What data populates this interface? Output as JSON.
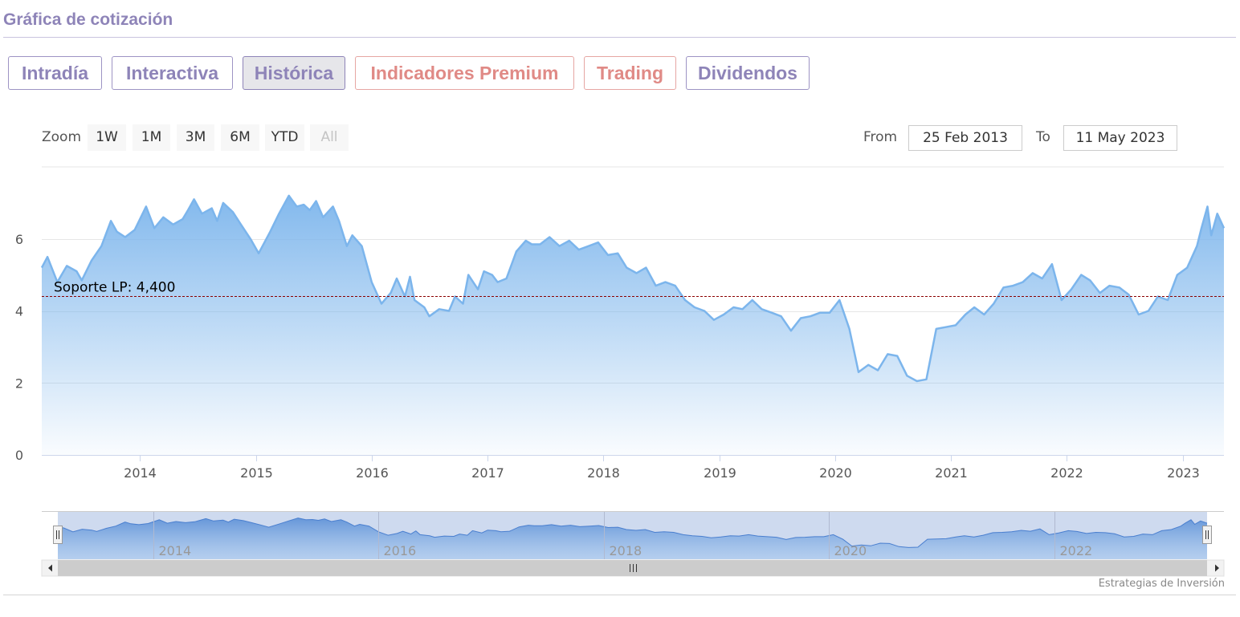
{
  "header": {
    "title": "Gráfica de cotización"
  },
  "tabs": [
    {
      "label": "Intradía",
      "state": "normal"
    },
    {
      "label": "Interactiva",
      "state": "normal"
    },
    {
      "label": "Histórica",
      "state": "active"
    },
    {
      "label": "Indicadores Premium",
      "state": "premium"
    },
    {
      "label": "Trading",
      "state": "premium"
    },
    {
      "label": "Dividendos",
      "state": "normal"
    }
  ],
  "zoom": {
    "label": "Zoom",
    "buttons": [
      "1W",
      "1M",
      "3M",
      "6M",
      "YTD",
      "All"
    ],
    "selected": "All"
  },
  "range": {
    "from_label": "From",
    "from_value": "25 Feb 2013",
    "to_label": "To",
    "to_value": "11 May 2023"
  },
  "credit": "Estrategias de Inversión",
  "colors": {
    "line": "#7cb5ec",
    "support_line": "#8b0000",
    "tab_text": "#8e84b8",
    "premium_text": "#e08a86"
  },
  "chart_data": {
    "type": "area",
    "x_type": "date",
    "xlim": [
      "2013-02-25",
      "2023-05-11"
    ],
    "ylim": [
      0,
      8
    ],
    "y_ticks": [
      0,
      2,
      4,
      6
    ],
    "x_ticks": [
      "2014",
      "2015",
      "2016",
      "2017",
      "2018",
      "2019",
      "2020",
      "2021",
      "2022",
      "2023"
    ],
    "navigator_ticks": [
      "2014",
      "2016",
      "2018",
      "2020",
      "2022"
    ],
    "grid": true,
    "legend": "none",
    "plot_band_line": {
      "label": "Soporte LP: 4,400",
      "value": 4.4
    },
    "series": [
      {
        "points": [
          [
            "2013-02-25",
            5.2
          ],
          [
            "2013-03-15",
            5.5
          ],
          [
            "2013-04-15",
            4.8
          ],
          [
            "2013-05-15",
            5.25
          ],
          [
            "2013-06-15",
            5.1
          ],
          [
            "2013-07-01",
            4.85
          ],
          [
            "2013-08-01",
            5.4
          ],
          [
            "2013-09-01",
            5.8
          ],
          [
            "2013-10-01",
            6.5
          ],
          [
            "2013-10-20",
            6.2
          ],
          [
            "2013-11-15",
            6.05
          ],
          [
            "2013-12-15",
            6.25
          ],
          [
            "2014-01-20",
            6.9
          ],
          [
            "2014-02-15",
            6.3
          ],
          [
            "2014-03-15",
            6.6
          ],
          [
            "2014-04-15",
            6.4
          ],
          [
            "2014-05-15",
            6.55
          ],
          [
            "2014-06-01",
            6.8
          ],
          [
            "2014-06-20",
            7.1
          ],
          [
            "2014-07-15",
            6.7
          ],
          [
            "2014-08-15",
            6.85
          ],
          [
            "2014-09-01",
            6.5
          ],
          [
            "2014-09-20",
            7.0
          ],
          [
            "2014-10-20",
            6.75
          ],
          [
            "2014-11-15",
            6.4
          ],
          [
            "2014-12-15",
            6.0
          ],
          [
            "2015-01-10",
            5.6
          ],
          [
            "2015-02-15",
            6.2
          ],
          [
            "2015-03-15",
            6.7
          ],
          [
            "2015-04-15",
            7.2
          ],
          [
            "2015-05-10",
            6.9
          ],
          [
            "2015-06-01",
            6.95
          ],
          [
            "2015-06-20",
            6.8
          ],
          [
            "2015-07-10",
            7.05
          ],
          [
            "2015-08-01",
            6.6
          ],
          [
            "2015-09-01",
            6.9
          ],
          [
            "2015-09-20",
            6.5
          ],
          [
            "2015-10-15",
            5.8
          ],
          [
            "2015-11-01",
            6.1
          ],
          [
            "2015-12-01",
            5.8
          ],
          [
            "2016-01-01",
            4.8
          ],
          [
            "2016-02-01",
            4.2
          ],
          [
            "2016-03-01",
            4.5
          ],
          [
            "2016-03-20",
            4.9
          ],
          [
            "2016-04-15",
            4.4
          ],
          [
            "2016-05-01",
            4.95
          ],
          [
            "2016-05-15",
            4.3
          ],
          [
            "2016-06-15",
            4.1
          ],
          [
            "2016-07-01",
            3.85
          ],
          [
            "2016-08-01",
            4.05
          ],
          [
            "2016-09-01",
            4.0
          ],
          [
            "2016-09-20",
            4.4
          ],
          [
            "2016-10-15",
            4.2
          ],
          [
            "2016-11-01",
            5.0
          ],
          [
            "2016-12-01",
            4.6
          ],
          [
            "2016-12-20",
            5.1
          ],
          [
            "2017-01-15",
            5.0
          ],
          [
            "2017-02-01",
            4.8
          ],
          [
            "2017-03-01",
            4.9
          ],
          [
            "2017-04-01",
            5.65
          ],
          [
            "2017-05-01",
            5.95
          ],
          [
            "2017-05-20",
            5.85
          ],
          [
            "2017-06-15",
            5.85
          ],
          [
            "2017-07-15",
            6.05
          ],
          [
            "2017-08-15",
            5.8
          ],
          [
            "2017-09-15",
            5.95
          ],
          [
            "2017-10-15",
            5.7
          ],
          [
            "2017-11-15",
            5.8
          ],
          [
            "2017-12-15",
            5.9
          ],
          [
            "2018-01-15",
            5.55
          ],
          [
            "2018-02-15",
            5.6
          ],
          [
            "2018-03-15",
            5.2
          ],
          [
            "2018-04-15",
            5.05
          ],
          [
            "2018-05-15",
            5.2
          ],
          [
            "2018-06-15",
            4.7
          ],
          [
            "2018-07-15",
            4.8
          ],
          [
            "2018-08-15",
            4.7
          ],
          [
            "2018-09-15",
            4.3
          ],
          [
            "2018-10-15",
            4.1
          ],
          [
            "2018-11-15",
            4.0
          ],
          [
            "2018-12-15",
            3.75
          ],
          [
            "2019-01-15",
            3.9
          ],
          [
            "2019-02-15",
            4.1
          ],
          [
            "2019-03-15",
            4.05
          ],
          [
            "2019-04-15",
            4.3
          ],
          [
            "2019-05-15",
            4.05
          ],
          [
            "2019-06-15",
            3.95
          ],
          [
            "2019-07-15",
            3.85
          ],
          [
            "2019-08-15",
            3.45
          ],
          [
            "2019-09-15",
            3.8
          ],
          [
            "2019-10-15",
            3.85
          ],
          [
            "2019-11-15",
            3.95
          ],
          [
            "2019-12-15",
            3.95
          ],
          [
            "2020-01-15",
            4.3
          ],
          [
            "2020-02-15",
            3.5
          ],
          [
            "2020-03-15",
            2.3
          ],
          [
            "2020-04-15",
            2.5
          ],
          [
            "2020-05-15",
            2.35
          ],
          [
            "2020-06-15",
            2.8
          ],
          [
            "2020-07-15",
            2.75
          ],
          [
            "2020-08-15",
            2.2
          ],
          [
            "2020-09-15",
            2.05
          ],
          [
            "2020-10-15",
            2.1
          ],
          [
            "2020-11-15",
            3.5
          ],
          [
            "2020-12-15",
            3.55
          ],
          [
            "2021-01-15",
            3.6
          ],
          [
            "2021-02-15",
            3.9
          ],
          [
            "2021-03-15",
            4.1
          ],
          [
            "2021-04-15",
            3.9
          ],
          [
            "2021-05-15",
            4.2
          ],
          [
            "2021-06-15",
            4.65
          ],
          [
            "2021-07-15",
            4.7
          ],
          [
            "2021-08-15",
            4.8
          ],
          [
            "2021-09-15",
            5.05
          ],
          [
            "2021-10-15",
            4.9
          ],
          [
            "2021-11-15",
            5.3
          ],
          [
            "2021-12-15",
            4.3
          ],
          [
            "2022-01-15",
            4.6
          ],
          [
            "2022-02-15",
            5.0
          ],
          [
            "2022-03-15",
            4.85
          ],
          [
            "2022-04-15",
            4.5
          ],
          [
            "2022-05-15",
            4.7
          ],
          [
            "2022-06-15",
            4.65
          ],
          [
            "2022-07-15",
            4.45
          ],
          [
            "2022-08-15",
            3.9
          ],
          [
            "2022-09-15",
            4.0
          ],
          [
            "2022-10-15",
            4.4
          ],
          [
            "2022-11-15",
            4.3
          ],
          [
            "2022-12-15",
            5.0
          ],
          [
            "2023-01-15",
            5.2
          ],
          [
            "2023-02-15",
            5.8
          ],
          [
            "2023-03-01",
            6.3
          ],
          [
            "2023-03-20",
            6.9
          ],
          [
            "2023-04-01",
            6.1
          ],
          [
            "2023-04-20",
            6.7
          ],
          [
            "2023-05-11",
            6.3
          ]
        ]
      }
    ]
  }
}
